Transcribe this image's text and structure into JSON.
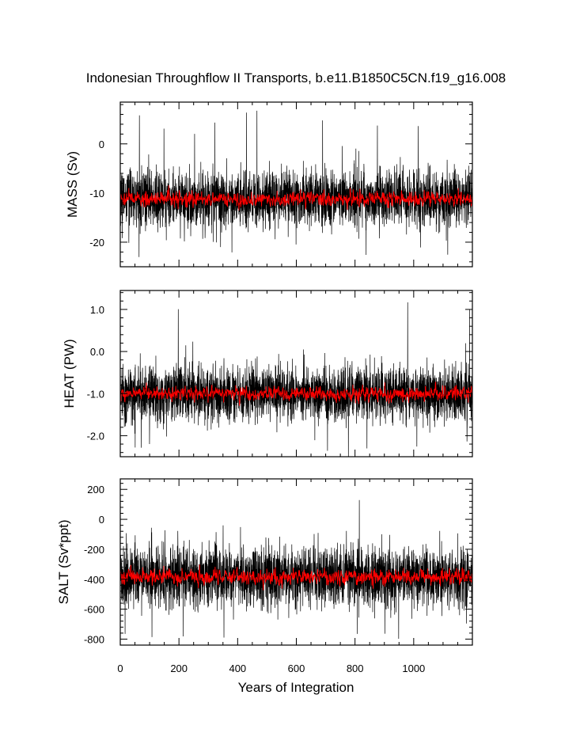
{
  "figure": {
    "title": "Indonesian Throughflow II Transports, b.e11.B1850C5CN.f19_g16.008",
    "xlabel": "Years of Integration"
  },
  "chart_data": [
    {
      "type": "line",
      "ylabel": "MASS (Sv)",
      "xlim": [
        0,
        1200
      ],
      "ylim": [
        -25,
        8.5
      ],
      "x_ticks": [
        0,
        200,
        400,
        600,
        800,
        1000
      ],
      "y_ticks": [
        0,
        -10,
        -20
      ],
      "y_tick_labels": [
        "0",
        "-10",
        "-20"
      ],
      "series": [
        {
          "kind": "monthly",
          "color": "#000000",
          "mean": -11.2,
          "amplitude": 3.3,
          "spikes_max": 7.0,
          "spikes_min": -24.0
        },
        {
          "kind": "annual",
          "color": "#ff0000",
          "mean": -11.2,
          "amplitude": 0.9
        }
      ]
    },
    {
      "type": "line",
      "ylabel": "HEAT (PW)",
      "xlim": [
        0,
        1200
      ],
      "ylim": [
        -2.5,
        1.45
      ],
      "x_ticks": [
        0,
        200,
        400,
        600,
        800,
        1000
      ],
      "y_ticks": [
        1.0,
        0.0,
        -1.0,
        -2.0
      ],
      "y_tick_labels": [
        "1.0",
        "0.0",
        "-1.0",
        "-2.0"
      ],
      "series": [
        {
          "kind": "monthly",
          "color": "#000000",
          "mean": -1.0,
          "amplitude": 0.38,
          "spikes_max": 1.4,
          "spikes_min": -2.4
        },
        {
          "kind": "annual",
          "color": "#ff0000",
          "mean": -1.0,
          "amplitude": 0.1
        }
      ]
    },
    {
      "type": "line",
      "ylabel": "SALT (Sv*ppt)",
      "xlim": [
        0,
        1200
      ],
      "ylim": [
        -840,
        270
      ],
      "x_ticks": [
        0,
        200,
        400,
        600,
        800,
        1000
      ],
      "y_ticks": [
        200,
        0,
        -200,
        -400,
        -600,
        -800
      ],
      "y_tick_labels": [
        "200",
        "0",
        "-200",
        "-400",
        "-600",
        "-800"
      ],
      "series": [
        {
          "kind": "monthly",
          "color": "#000000",
          "mean": -385,
          "amplitude": 115,
          "spikes_max": 230,
          "spikes_min": -820
        },
        {
          "kind": "annual",
          "color": "#ff0000",
          "mean": -385,
          "amplitude": 30
        }
      ]
    }
  ]
}
